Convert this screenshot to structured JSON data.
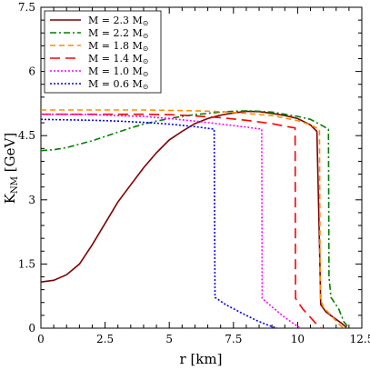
{
  "chart_data": {
    "type": "line",
    "xlabel": "r [km]",
    "ylabel": {
      "main": "K",
      "sub": "NM",
      "unit": " [GeV]"
    },
    "xlim": [
      0,
      12.5
    ],
    "ylim": [
      0,
      7.5
    ],
    "x_ticks": [
      "0",
      "2.5",
      "5",
      "7.5",
      "10",
      "12.5"
    ],
    "y_ticks": [
      "0",
      "1.5",
      "3",
      "4.5",
      "6",
      "7.5"
    ],
    "legend_position": "top-left",
    "series": [
      {
        "name": "M = 2.3 M",
        "color": "#7f0000",
        "dash": "solid",
        "points": [
          [
            0,
            1.08
          ],
          [
            0.5,
            1.12
          ],
          [
            1,
            1.25
          ],
          [
            1.5,
            1.5
          ],
          [
            2,
            1.95
          ],
          [
            2.5,
            2.45
          ],
          [
            3,
            2.95
          ],
          [
            3.5,
            3.35
          ],
          [
            4,
            3.75
          ],
          [
            4.5,
            4.1
          ],
          [
            5,
            4.4
          ],
          [
            5.5,
            4.6
          ],
          [
            6,
            4.78
          ],
          [
            6.5,
            4.9
          ],
          [
            7,
            4.98
          ],
          [
            7.5,
            5.03
          ],
          [
            8,
            5.07
          ],
          [
            8.5,
            5.06
          ],
          [
            9,
            5.02
          ],
          [
            9.5,
            4.97
          ],
          [
            10,
            4.9
          ],
          [
            10.5,
            4.75
          ],
          [
            10.75,
            4.6
          ],
          [
            10.85,
            2.0
          ],
          [
            10.9,
            0.55
          ],
          [
            11.1,
            0.38
          ],
          [
            11.4,
            0.25
          ],
          [
            11.7,
            0.12
          ],
          [
            11.9,
            0.02
          ]
        ]
      },
      {
        "name": "M = 2.2 M",
        "color": "#008000",
        "dash": "dashdot",
        "points": [
          [
            0,
            4.15
          ],
          [
            0.5,
            4.17
          ],
          [
            1,
            4.22
          ],
          [
            1.5,
            4.3
          ],
          [
            2,
            4.38
          ],
          [
            2.5,
            4.48
          ],
          [
            3,
            4.58
          ],
          [
            3.5,
            4.68
          ],
          [
            4,
            4.77
          ],
          [
            4.5,
            4.84
          ],
          [
            5,
            4.9
          ],
          [
            5.5,
            4.95
          ],
          [
            6,
            4.99
          ],
          [
            6.5,
            5.02
          ],
          [
            7,
            5.05
          ],
          [
            7.5,
            5.07
          ],
          [
            8,
            5.08
          ],
          [
            8.5,
            5.07
          ],
          [
            9,
            5.05
          ],
          [
            9.5,
            5.0
          ],
          [
            10,
            4.95
          ],
          [
            10.5,
            4.88
          ],
          [
            11,
            4.72
          ],
          [
            11.2,
            4.65
          ],
          [
            11.22,
            1.2
          ],
          [
            11.3,
            0.72
          ],
          [
            11.6,
            0.45
          ],
          [
            11.8,
            0.15
          ],
          [
            12,
            0.0
          ]
        ]
      },
      {
        "name": "M = 1.8 M",
        "color": "#ff8c00",
        "dash": "dash",
        "points": [
          [
            0,
            5.1
          ],
          [
            1,
            5.1
          ],
          [
            2,
            5.1
          ],
          [
            3,
            5.1
          ],
          [
            4,
            5.1
          ],
          [
            5,
            5.09
          ],
          [
            6,
            5.08
          ],
          [
            7,
            5.06
          ],
          [
            8,
            5.02
          ],
          [
            9,
            4.97
          ],
          [
            10,
            4.85
          ],
          [
            10.5,
            4.75
          ],
          [
            10.85,
            4.65
          ],
          [
            10.88,
            0.72
          ],
          [
            11.0,
            0.5
          ],
          [
            11.3,
            0.3
          ],
          [
            11.6,
            0.1
          ],
          [
            11.8,
            0.0
          ]
        ]
      },
      {
        "name": "M = 1.4 M",
        "color": "#ff0000",
        "dash": "longdash",
        "points": [
          [
            0,
            5.0
          ],
          [
            1,
            5.0
          ],
          [
            2,
            5.0
          ],
          [
            3,
            5.0
          ],
          [
            4,
            5.0
          ],
          [
            5,
            4.99
          ],
          [
            6,
            4.96
          ],
          [
            7,
            4.92
          ],
          [
            8,
            4.86
          ],
          [
            9,
            4.78
          ],
          [
            9.5,
            4.72
          ],
          [
            9.9,
            4.68
          ],
          [
            9.92,
            0.7
          ],
          [
            10.2,
            0.45
          ],
          [
            10.5,
            0.25
          ],
          [
            10.8,
            0.05
          ],
          [
            10.9,
            0.0
          ]
        ]
      },
      {
        "name": "M = 1.0 M",
        "color": "#ff00ff",
        "dash": "dot",
        "points": [
          [
            0,
            5.0
          ],
          [
            1,
            5.0
          ],
          [
            2,
            4.99
          ],
          [
            3,
            4.97
          ],
          [
            4,
            4.95
          ],
          [
            5,
            4.9
          ],
          [
            6,
            4.84
          ],
          [
            7,
            4.77
          ],
          [
            8,
            4.7
          ],
          [
            8.6,
            4.65
          ],
          [
            8.62,
            0.7
          ],
          [
            9,
            0.5
          ],
          [
            9.5,
            0.25
          ],
          [
            9.9,
            0.08
          ],
          [
            10.1,
            0.0
          ]
        ]
      },
      {
        "name": "M = 0.6 M",
        "color": "#0000ff",
        "dash": "dot",
        "points": [
          [
            0,
            4.88
          ],
          [
            1,
            4.87
          ],
          [
            2,
            4.86
          ],
          [
            3,
            4.84
          ],
          [
            4,
            4.81
          ],
          [
            5,
            4.77
          ],
          [
            6,
            4.71
          ],
          [
            6.75,
            4.65
          ],
          [
            6.78,
            0.72
          ],
          [
            7.2,
            0.55
          ],
          [
            7.8,
            0.36
          ],
          [
            8.4,
            0.18
          ],
          [
            8.9,
            0.06
          ],
          [
            9.2,
            0.0
          ]
        ]
      }
    ]
  }
}
